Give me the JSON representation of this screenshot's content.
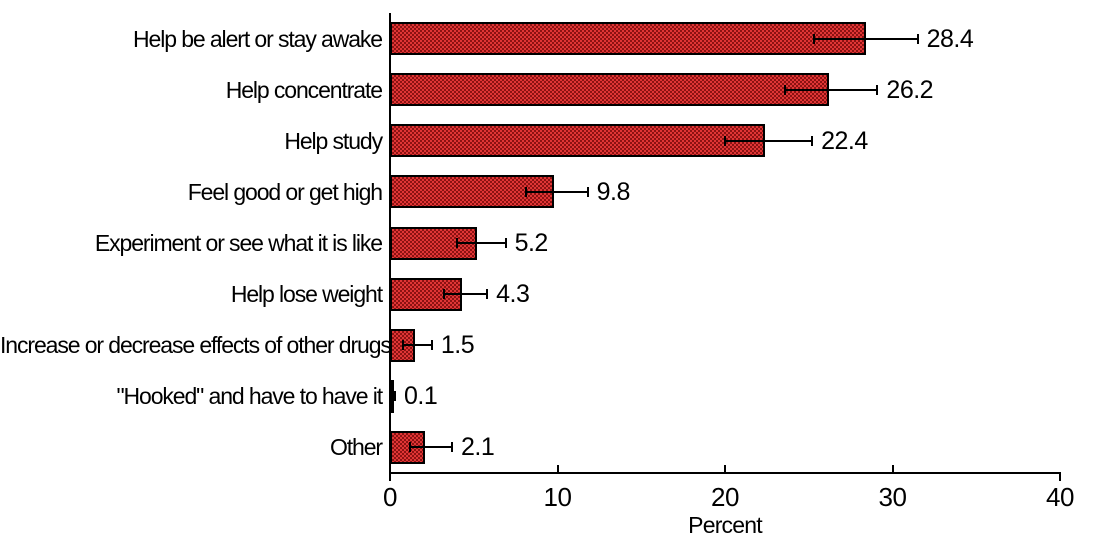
{
  "chart_data": {
    "type": "bar",
    "orientation": "horizontal",
    "categories": [
      "Help be alert or stay awake",
      "Help concentrate",
      "Help study",
      "Feel good or get high",
      "Experiment or see what it is like",
      "Help lose weight",
      "Increase or decrease effects of other drugs",
      "\"Hooked\" and have to have it",
      "Other"
    ],
    "values": [
      28.4,
      26.2,
      22.4,
      9.8,
      5.2,
      4.3,
      1.5,
      0.1,
      2.1
    ],
    "value_label_format": "one_decimal",
    "error_bars": {
      "low": [
        25.3,
        23.6,
        20.0,
        8.1,
        4.0,
        3.2,
        0.8,
        0.0,
        1.2
      ],
      "high": [
        31.5,
        29.1,
        25.2,
        11.8,
        6.9,
        5.8,
        2.5,
        0.3,
        3.7
      ]
    },
    "xlabel": "Percent",
    "xlim": [
      0,
      40
    ],
    "x_ticks": [
      0,
      10,
      20,
      30,
      40
    ],
    "grid": false,
    "legend_position": "none",
    "colors": {
      "bar_fill_light": "#e03535",
      "bar_fill_dark": "#8c1212",
      "bar_border": "#000000",
      "axis": "#000000",
      "text": "#000000",
      "background": "#ffffff"
    }
  }
}
